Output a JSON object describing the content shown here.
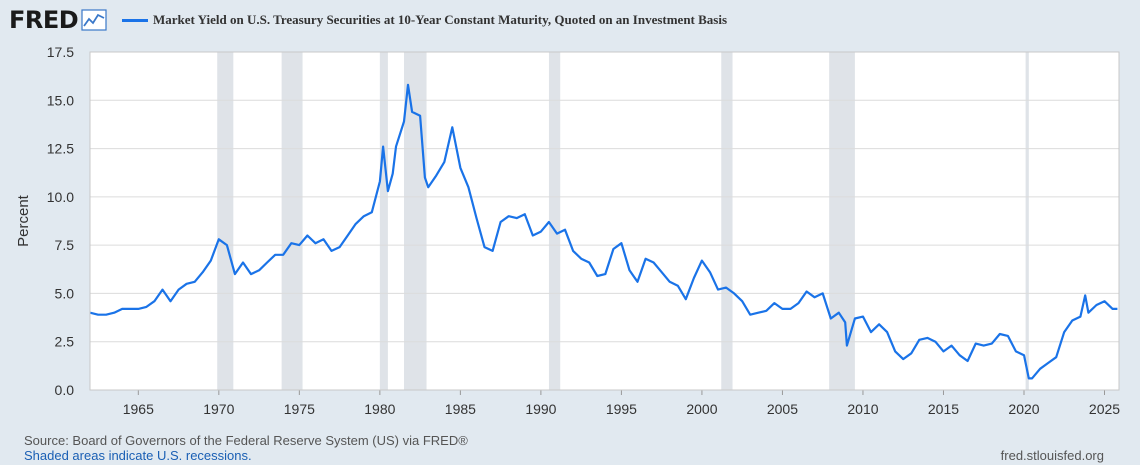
{
  "header": {
    "logo_text": "FRED",
    "legend_label": "Market Yield on U.S. Treasury Securities at 10-Year Constant Maturity, Quoted on an Investment Basis"
  },
  "footer": {
    "source": "Source: Board of Governors of the Federal Reserve System (US) via FRED®",
    "recession_note": "Shaded areas indicate U.S. recessions.",
    "site": "fred.stlouisfed.org"
  },
  "colors": {
    "line": "#1a73e8",
    "recession": "#dfe3e8",
    "grid": "#dcdcdc",
    "background": "#e1e9f0",
    "plot": "#ffffff"
  },
  "chart_data": {
    "type": "line",
    "title": "Market Yield on U.S. Treasury Securities at 10-Year Constant Maturity, Quoted on an Investment Basis",
    "xlabel": "",
    "ylabel": "Percent",
    "xlim": [
      1962.0,
      2025.9
    ],
    "ylim": [
      0,
      17.5
    ],
    "yticks": [
      0.0,
      2.5,
      5.0,
      7.5,
      10.0,
      12.5,
      15.0,
      17.5
    ],
    "ytick_labels": [
      "0.0",
      "2.5",
      "5.0",
      "7.5",
      "10.0",
      "12.5",
      "15.0",
      "17.5"
    ],
    "xticks": [
      1965,
      1970,
      1975,
      1980,
      1985,
      1990,
      1995,
      2000,
      2005,
      2010,
      2015,
      2020,
      2025
    ],
    "xtick_labels": [
      "1965",
      "1970",
      "1975",
      "1980",
      "1985",
      "1990",
      "1995",
      "2000",
      "2005",
      "2010",
      "2015",
      "2020",
      "2025"
    ],
    "grid": true,
    "recessions": [
      [
        1969.9,
        1970.9
      ],
      [
        1973.9,
        1975.2
      ],
      [
        1980.0,
        1980.5
      ],
      [
        1981.5,
        1982.9
      ],
      [
        1990.5,
        1991.2
      ],
      [
        2001.2,
        2001.9
      ],
      [
        2007.9,
        2009.5
      ],
      [
        2020.1,
        2020.3
      ]
    ],
    "series": [
      {
        "name": "Market Yield on U.S. Treasury Securities at 10-Year Constant Maturity",
        "x": [
          1962.0,
          1962.5,
          1963.0,
          1963.5,
          1964.0,
          1964.5,
          1965.0,
          1965.5,
          1966.0,
          1966.5,
          1967.0,
          1967.5,
          1968.0,
          1968.5,
          1969.0,
          1969.5,
          1970.0,
          1970.5,
          1971.0,
          1971.5,
          1972.0,
          1972.5,
          1973.0,
          1973.5,
          1974.0,
          1974.5,
          1975.0,
          1975.5,
          1976.0,
          1976.5,
          1977.0,
          1977.5,
          1978.0,
          1978.5,
          1979.0,
          1979.5,
          1980.0,
          1980.2,
          1980.5,
          1980.8,
          1981.0,
          1981.5,
          1981.75,
          1982.0,
          1982.5,
          1982.8,
          1983.0,
          1983.5,
          1984.0,
          1984.5,
          1985.0,
          1985.5,
          1986.0,
          1986.5,
          1987.0,
          1987.5,
          1988.0,
          1988.5,
          1989.0,
          1989.5,
          1990.0,
          1990.5,
          1991.0,
          1991.5,
          1992.0,
          1992.5,
          1993.0,
          1993.5,
          1994.0,
          1994.5,
          1995.0,
          1995.5,
          1996.0,
          1996.5,
          1997.0,
          1997.5,
          1998.0,
          1998.5,
          1999.0,
          1999.5,
          2000.0,
          2000.5,
          2001.0,
          2001.5,
          2002.0,
          2002.5,
          2003.0,
          2003.5,
          2004.0,
          2004.5,
          2005.0,
          2005.5,
          2006.0,
          2006.5,
          2007.0,
          2007.5,
          2008.0,
          2008.5,
          2008.9,
          2009.0,
          2009.5,
          2010.0,
          2010.5,
          2011.0,
          2011.5,
          2012.0,
          2012.5,
          2013.0,
          2013.5,
          2014.0,
          2014.5,
          2015.0,
          2015.5,
          2016.0,
          2016.5,
          2017.0,
          2017.5,
          2018.0,
          2018.5,
          2019.0,
          2019.5,
          2020.0,
          2020.3,
          2020.5,
          2021.0,
          2021.5,
          2022.0,
          2022.5,
          2023.0,
          2023.5,
          2023.8,
          2024.0,
          2024.5,
          2025.0,
          2025.5,
          2025.8
        ],
        "values": [
          4.0,
          3.9,
          3.9,
          4.0,
          4.2,
          4.2,
          4.2,
          4.3,
          4.6,
          5.2,
          4.6,
          5.2,
          5.5,
          5.6,
          6.1,
          6.7,
          7.8,
          7.5,
          6.0,
          6.6,
          6.0,
          6.2,
          6.6,
          7.0,
          7.0,
          7.6,
          7.5,
          8.0,
          7.6,
          7.8,
          7.2,
          7.4,
          8.0,
          8.6,
          9.0,
          9.2,
          10.8,
          12.6,
          10.3,
          11.2,
          12.6,
          13.9,
          15.8,
          14.4,
          14.2,
          11.0,
          10.5,
          11.1,
          11.8,
          13.6,
          11.5,
          10.5,
          8.9,
          7.4,
          7.2,
          8.7,
          9.0,
          8.9,
          9.1,
          8.0,
          8.2,
          8.7,
          8.1,
          8.3,
          7.2,
          6.8,
          6.6,
          5.9,
          6.0,
          7.3,
          7.6,
          6.2,
          5.6,
          6.8,
          6.6,
          6.1,
          5.6,
          5.4,
          4.7,
          5.8,
          6.7,
          6.1,
          5.2,
          5.3,
          5.0,
          4.6,
          3.9,
          4.0,
          4.1,
          4.5,
          4.2,
          4.2,
          4.5,
          5.1,
          4.8,
          5.0,
          3.7,
          4.0,
          3.5,
          2.3,
          3.7,
          3.8,
          3.0,
          3.4,
          3.0,
          2.0,
          1.6,
          1.9,
          2.6,
          2.7,
          2.5,
          2.0,
          2.3,
          1.8,
          1.5,
          2.4,
          2.3,
          2.4,
          2.9,
          2.8,
          2.0,
          1.8,
          0.6,
          0.6,
          1.1,
          1.4,
          1.7,
          3.0,
          3.6,
          3.8,
          4.9,
          4.0,
          4.4,
          4.6,
          4.2,
          4.2
        ]
      }
    ]
  }
}
